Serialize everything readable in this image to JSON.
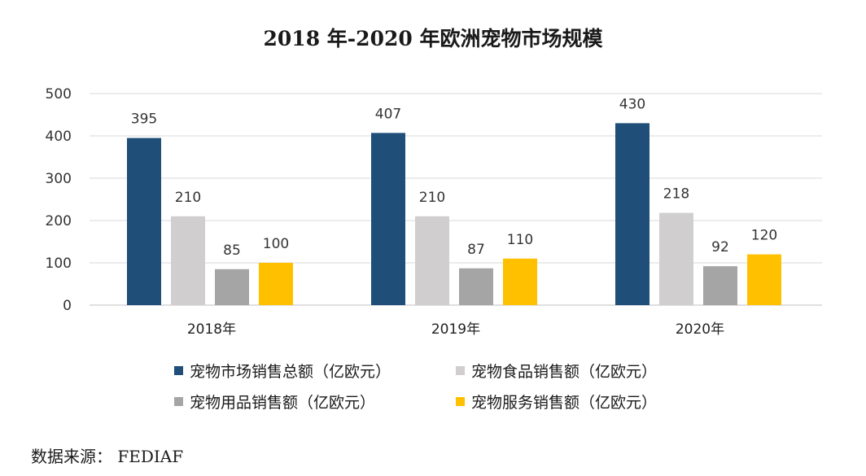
{
  "title": "2018 年-2020 年欧洲宠物市场规模",
  "source": "数据来源： FEDIAF",
  "colors": {
    "total": "#1F4E79",
    "food": "#D0CECE",
    "supplies": "#A5A5A5",
    "services": "#FFC000",
    "grid": "#D9D9D9"
  },
  "chart_data": {
    "type": "bar",
    "title": "2018 年-2020 年欧洲宠物市场规模",
    "categories": [
      "2018年",
      "2019年",
      "2020年"
    ],
    "series": [
      {
        "name": "宠物市场销售总额（亿欧元）",
        "values": [
          395,
          407,
          430
        ]
      },
      {
        "name": "宠物食品销售额（亿欧元）",
        "values": [
          210,
          210,
          218
        ]
      },
      {
        "name": "宠物用品销售额（亿欧元）",
        "values": [
          85,
          87,
          92
        ]
      },
      {
        "name": "宠物服务销售额（亿欧元）",
        "values": [
          100,
          110,
          120
        ]
      }
    ],
    "ylim": [
      0,
      500
    ],
    "yticks": [
      0,
      100,
      200,
      300,
      400,
      500
    ],
    "grid": true,
    "legend_position": "bottom",
    "data_labels": true
  }
}
